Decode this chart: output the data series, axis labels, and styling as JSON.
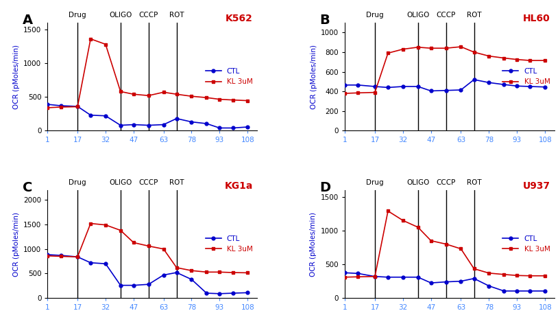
{
  "x_ticks": [
    1,
    17,
    32,
    47,
    63,
    78,
    93,
    108
  ],
  "vline_positions": [
    17,
    40,
    55,
    70
  ],
  "vline_labels": [
    "Drug",
    "OLIGO",
    "CCCP",
    "ROT"
  ],
  "panels": [
    {
      "label": "A",
      "title": "K562",
      "ctl_x": [
        1,
        8,
        17,
        24,
        32,
        40,
        47,
        55,
        63,
        70,
        78,
        86,
        93,
        100,
        108
      ],
      "ctl_y": [
        390,
        370,
        360,
        230,
        220,
        80,
        90,
        80,
        90,
        180,
        130,
        105,
        40,
        40,
        55
      ],
      "kl_x": [
        1,
        8,
        17,
        24,
        32,
        40,
        47,
        55,
        63,
        70,
        78,
        86,
        93,
        100,
        108
      ],
      "kl_y": [
        340,
        350,
        355,
        1360,
        1280,
        580,
        540,
        520,
        570,
        540,
        510,
        490,
        465,
        455,
        445
      ],
      "ylim": [
        0,
        1600
      ],
      "yticks": [
        0,
        500,
        1000,
        1500
      ]
    },
    {
      "label": "B",
      "title": "HL60",
      "ctl_x": [
        1,
        8,
        17,
        24,
        32,
        40,
        47,
        55,
        63,
        70,
        78,
        86,
        93,
        100,
        108
      ],
      "ctl_y": [
        465,
        465,
        450,
        440,
        450,
        450,
        405,
        410,
        415,
        520,
        490,
        470,
        455,
        450,
        445
      ],
      "kl_x": [
        1,
        8,
        17,
        24,
        32,
        40,
        47,
        55,
        63,
        70,
        78,
        86,
        93,
        100,
        108
      ],
      "kl_y": [
        380,
        385,
        390,
        790,
        830,
        850,
        840,
        840,
        855,
        800,
        760,
        740,
        725,
        715,
        715
      ],
      "ylim": [
        0,
        1100
      ],
      "yticks": [
        0,
        200,
        400,
        600,
        800,
        1000
      ]
    },
    {
      "label": "C",
      "title": "KG1a",
      "ctl_x": [
        1,
        8,
        17,
        24,
        32,
        40,
        47,
        55,
        63,
        70,
        78,
        86,
        93,
        100,
        108
      ],
      "ctl_y": [
        885,
        870,
        840,
        720,
        700,
        260,
        260,
        280,
        470,
        520,
        380,
        100,
        90,
        100,
        110
      ],
      "kl_x": [
        1,
        8,
        17,
        24,
        32,
        40,
        47,
        55,
        63,
        70,
        78,
        86,
        93,
        100,
        108
      ],
      "kl_y": [
        860,
        850,
        840,
        1520,
        1490,
        1380,
        1130,
        1060,
        1000,
        620,
        560,
        530,
        530,
        520,
        515
      ],
      "ylim": [
        0,
        2200
      ],
      "yticks": [
        0,
        500,
        1000,
        1500,
        2000
      ]
    },
    {
      "label": "D",
      "title": "U937",
      "ctl_x": [
        1,
        8,
        17,
        24,
        32,
        40,
        47,
        55,
        63,
        70,
        78,
        86,
        93,
        100,
        108
      ],
      "ctl_y": [
        375,
        365,
        320,
        310,
        310,
        310,
        225,
        240,
        250,
        290,
        180,
        105,
        105,
        105,
        105
      ],
      "kl_x": [
        1,
        8,
        17,
        24,
        32,
        40,
        47,
        55,
        63,
        70,
        78,
        86,
        93,
        100,
        108
      ],
      "kl_y": [
        310,
        315,
        320,
        1290,
        1150,
        1050,
        850,
        800,
        730,
        435,
        370,
        350,
        335,
        330,
        330
      ],
      "ylim": [
        0,
        1600
      ],
      "yticks": [
        0,
        500,
        1000,
        1500
      ]
    }
  ],
  "ctl_color": "#0000cc",
  "kl_color": "#cc0000",
  "title_color": "#cc0000",
  "ylabel": "OCR (pMoles/min)",
  "ctl_label": "CTL",
  "kl_label": "KL 3uM",
  "xtick_color": "#4488ff",
  "ytick_color": "#000000"
}
